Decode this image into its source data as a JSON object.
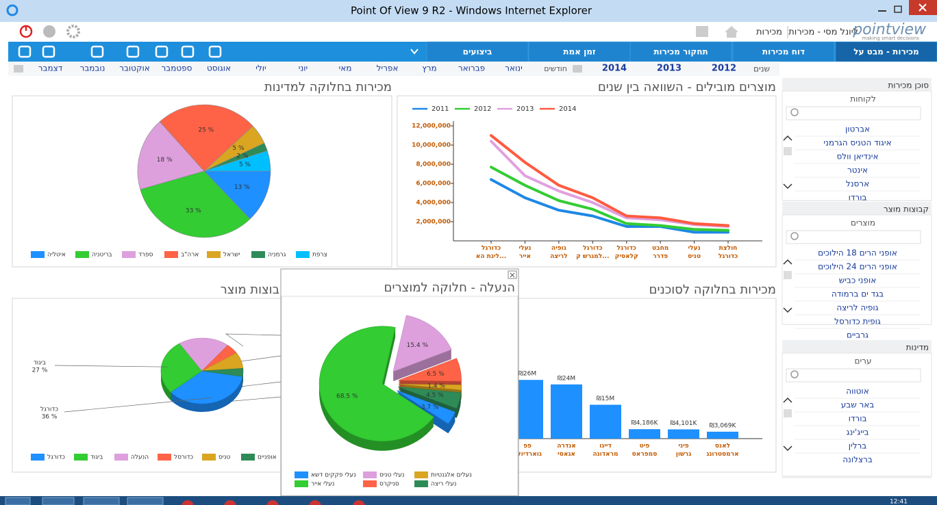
{
  "window": {
    "title": "Point Of View 9 R2 - Windows Internet Explorer"
  },
  "header": {
    "breadcrumb": [
      "מכירות",
      "ליונל מסי - מכירות"
    ],
    "logo": "pointview",
    "tagline": "making smart decisions"
  },
  "nav": {
    "tabs": [
      "מכירות - מבט על",
      "דוח מכירות",
      "תחקור מכירות",
      "זמן אמת",
      "ביצועים"
    ]
  },
  "years": {
    "label": "שנים",
    "items": [
      2012,
      2013,
      2014
    ]
  },
  "months": {
    "label": "חודשים",
    "items": [
      "ינואר",
      "פברואר",
      "מרץ",
      "אפריל",
      "מאי",
      "יוני",
      "יולי",
      "אוגוסט",
      "ספטמבר",
      "אוקטובר",
      "נובמבר",
      "דצמבר"
    ]
  },
  "sidebar": {
    "sections": [
      {
        "title": "סוכן מכירות",
        "subtitle": "לקוחות",
        "items": [
          "אברטון",
          "איגוד הטניס הגרמני",
          "אינדיאן וולס",
          "אינטר",
          "ארסנל",
          "בורדו"
        ]
      },
      {
        "title": "קבוצות מוצר",
        "subtitle": "מוצרים",
        "items": [
          "אופני הרים 18 הילוכים",
          "אופני הרים 24 הילוכים",
          "אופני כביש",
          "בגד ים ברמודה",
          "גופיה לריצה",
          "גופית כדורסל",
          "גרביים"
        ]
      },
      {
        "title": "מדינות",
        "subtitle": "ערים",
        "items": [
          "אוטווה",
          "באר שבע",
          "בורדו",
          "בייג'ינג",
          "ברלין",
          "ברצלונה"
        ]
      }
    ]
  },
  "taskbar": {
    "clock": "12:41"
  },
  "chart_data": [
    {
      "type": "pie",
      "title": "מכירות בחלוקה למדינות",
      "categories": [
        "איטליה",
        "בריטניה",
        "ספרד",
        "ארה\"ב",
        "ישראל",
        "גרמניה",
        "צרפת"
      ],
      "values": [
        13,
        33,
        18,
        25,
        5,
        2,
        5
      ],
      "value_labels": [
        "13 %",
        "33 %",
        "18 %",
        "25 %",
        "5 %",
        "2 %",
        "5 %"
      ],
      "colors": [
        "#1e90ff",
        "#33cc33",
        "#dda0dd",
        "#ff6347",
        "#daa520",
        "#2e8b57",
        "#00bfff"
      ]
    },
    {
      "type": "line",
      "title": "מוצרים מובילים - השוואה בין שנים",
      "categories": [
        "כדורגל ליגת הא...",
        "נעלי אייר",
        "גופיה לריצה",
        "כדורגל למגרש ק...",
        "כדורגל קלאסיק",
        "מחבט פדרר",
        "נעלי טניס",
        "חולצת כדורגל"
      ],
      "series": [
        {
          "name": "2011",
          "color": "#1e88e5",
          "values": [
            6400000,
            4500000,
            3200000,
            2600000,
            1500000,
            1500000,
            900000,
            900000
          ]
        },
        {
          "name": "2012",
          "color": "#33cc33",
          "values": [
            7700000,
            5800000,
            4200000,
            3300000,
            1800000,
            1600000,
            1200000,
            1100000
          ]
        },
        {
          "name": "2013",
          "color": "#e0a0e0",
          "values": [
            10400000,
            6800000,
            5200000,
            4000000,
            2400000,
            2200000,
            1700000,
            1500000
          ]
        },
        {
          "name": "2014",
          "color": "#ff5a40",
          "values": [
            11000000,
            8200000,
            5800000,
            4500000,
            2600000,
            2400000,
            1800000,
            1600000
          ]
        }
      ],
      "ylim": [
        0,
        12500000
      ],
      "yticks": [
        {
          "value": 2000000,
          "label": "2,000,000"
        },
        {
          "value": 4000000,
          "label": "4,000,000"
        },
        {
          "value": 6000000,
          "label": "6,000,000"
        },
        {
          "value": 8000000,
          "label": "8,000,000"
        },
        {
          "value": 10000000,
          "label": "10,000,000"
        },
        {
          "value": 12000000,
          "label": "12,000,000"
        }
      ],
      "grid": false,
      "legend": "top"
    },
    {
      "type": "pie",
      "three_d": true,
      "title": "בוצות מוצר",
      "categories": [
        "כדורגל",
        "ביגוד",
        "הנעלה",
        "כדורסל",
        "טניס",
        "אופניים"
      ],
      "values": [
        36,
        27,
        20,
        5,
        8,
        4
      ],
      "value_labels": [
        "36 %",
        "27 %",
        null,
        null,
        null,
        null
      ],
      "colors": [
        "#1e90ff",
        "#33cc33",
        "#dda0dd",
        "#ff6347",
        "#daa520",
        "#2e8b57"
      ]
    },
    {
      "type": "bar",
      "title": "מכירות בחלוקה לסוכנים",
      "categories": [
        "פפ גוארדיולה",
        "אנדרה אגאסי",
        "דייגו מראדונה",
        "פיט סמפראס",
        "פיני גרשון",
        "לאנס ארמסטרונג"
      ],
      "values": [
        26000000,
        24000000,
        15000000,
        4186000,
        4101000,
        3069000
      ],
      "value_labels": [
        "₪26M",
        "₪24M",
        "₪15M",
        "₪4,186K",
        "₪4,101K",
        "₪3,069K"
      ],
      "color": "#1e90ff",
      "ylim": [
        0,
        30000000
      ]
    },
    {
      "type": "pie",
      "three_d": true,
      "exploded": true,
      "title": "הנעלה - חלוקה למוצרים",
      "categories": [
        "נעלי טניס",
        "סניקרס",
        "נעלים אלגנטיות",
        "נעלי ריצה",
        "נעלי פקקים דשא",
        "נעלי אייר"
      ],
      "values": [
        15.4,
        6.5,
        1.4,
        4.5,
        3.7,
        68.5
      ],
      "value_labels": [
        "15.4 %",
        "6.5 %",
        "1.4 %",
        "4.5 %",
        "3.7 %",
        "68.5 %"
      ],
      "colors": [
        "#dda0dd",
        "#ff6347",
        "#daa520",
        "#2e8b57",
        "#1e90ff",
        "#33cc33"
      ]
    }
  ]
}
